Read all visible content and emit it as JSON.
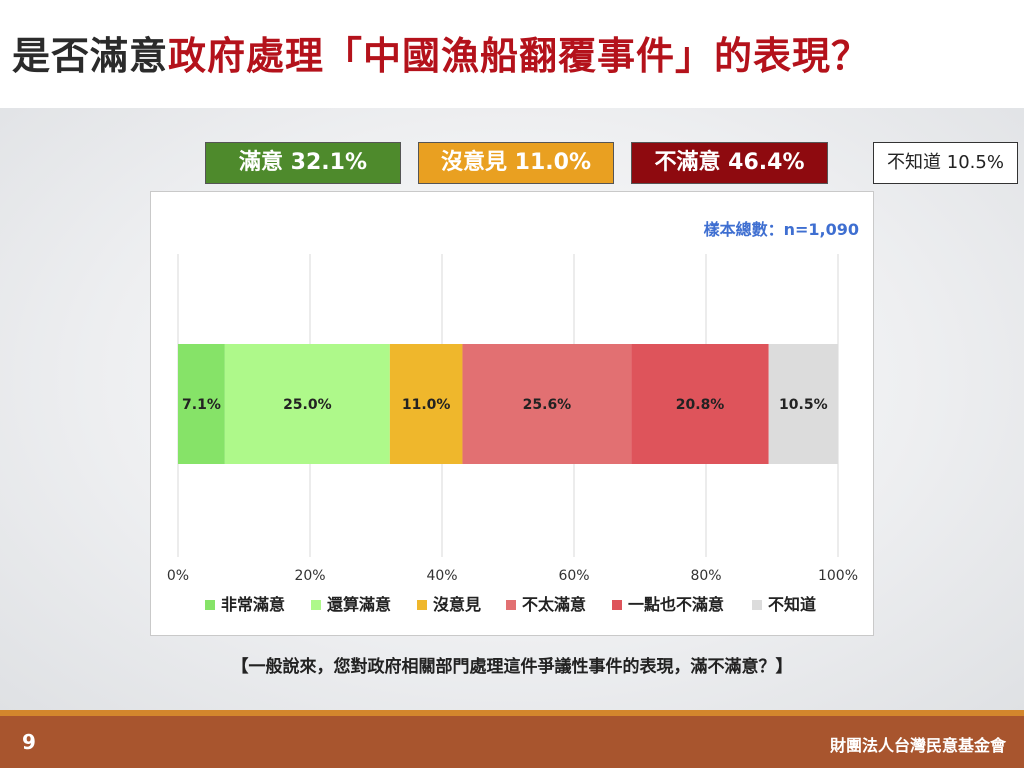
{
  "title": {
    "part1": "是否滿意",
    "part2": "政府處理「中國漁船翻覆事件」的表現？"
  },
  "summary": {
    "satisfied": "滿意 32.1%",
    "no_opinion": "沒意見 11.0%",
    "dissatisfied": "不滿意 46.4%",
    "dont_know": "不知道 10.5%"
  },
  "sample_note": "樣本總數：n=1,090",
  "question": "【一般說來，您對政府相關部門處理這件爭議性事件的表現，滿不滿意？】",
  "footer": {
    "page_number": "9",
    "org": "財團法人台灣民意基金會"
  },
  "chart_data": {
    "type": "bar",
    "orientation": "horizontal",
    "stacked": true,
    "xlim": [
      0,
      100
    ],
    "x_ticks": [
      "0%",
      "20%",
      "40%",
      "60%",
      "80%",
      "100%"
    ],
    "grid": true,
    "legend_position": "bottom",
    "series": [
      {
        "name": "非常滿意",
        "value": 7.1,
        "label": "7.1%",
        "color": "#86e368"
      },
      {
        "name": "還算滿意",
        "value": 25.0,
        "label": "25.0%",
        "color": "#aef98a"
      },
      {
        "name": "沒意見",
        "value": 11.0,
        "label": "11.0%",
        "color": "#efb72c"
      },
      {
        "name": "不太滿意",
        "value": 25.6,
        "label": "25.6%",
        "color": "#e27072"
      },
      {
        "name": "一點也不滿意",
        "value": 20.8,
        "label": "20.8%",
        "color": "#de545b"
      },
      {
        "name": "不知道",
        "value": 10.5,
        "label": "10.5%",
        "color": "#dcdcdc"
      }
    ]
  }
}
